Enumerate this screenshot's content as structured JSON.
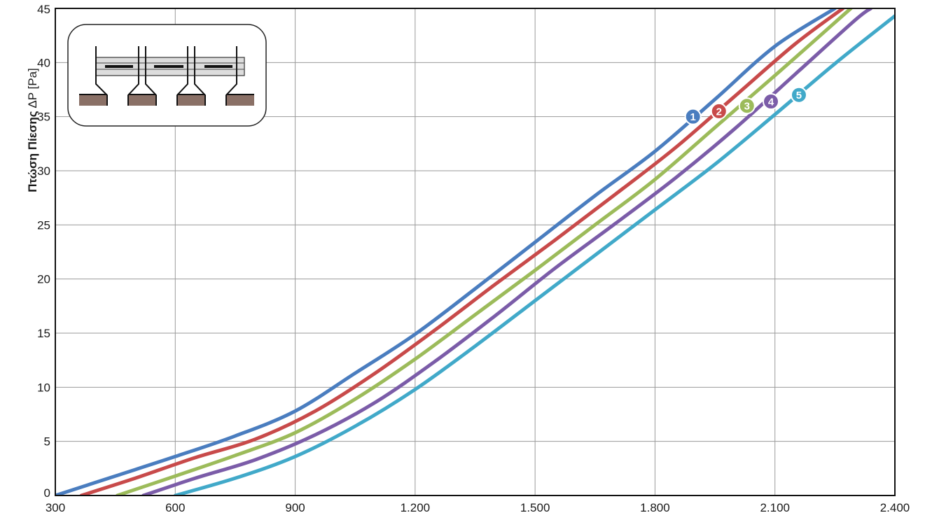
{
  "chart_data": {
    "type": "line",
    "title": "",
    "xlabel": "",
    "ylabel_bold": "Πτώση Πίεσης",
    "ylabel_rest": " ΔP [Pa]",
    "xlim": [
      300,
      2400
    ],
    "ylim": [
      0,
      45
    ],
    "grid": true,
    "x_ticks": [
      300,
      600,
      900,
      1200,
      1500,
      1800,
      2100,
      2400
    ],
    "x_tick_labels": [
      "300",
      "600",
      "900",
      "1.200",
      "1.500",
      "1.800",
      "2.100",
      "2.400"
    ],
    "y_ticks": [
      0,
      5,
      10,
      15,
      20,
      25,
      30,
      35,
      40,
      45
    ],
    "y_tick_labels": [
      "0",
      "5",
      "10",
      "15",
      "20",
      "25",
      "30",
      "35",
      "40",
      "45"
    ],
    "series": [
      {
        "label": "1",
        "color": "#4a7dbf",
        "points": [
          [
            300,
            0
          ],
          [
            450,
            1.8
          ],
          [
            600,
            3.6
          ],
          [
            750,
            5.5
          ],
          [
            900,
            7.8
          ],
          [
            1050,
            11.3
          ],
          [
            1200,
            14.9
          ],
          [
            1350,
            19.1
          ],
          [
            1500,
            23.4
          ],
          [
            1650,
            27.7
          ],
          [
            1800,
            31.8
          ],
          [
            1950,
            36.6
          ],
          [
            2100,
            41.5
          ],
          [
            2250,
            45
          ]
        ],
        "marker": [
          1895,
          35
        ]
      },
      {
        "label": "2",
        "color": "#c84a4a",
        "points": [
          [
            365,
            0
          ],
          [
            500,
            1.6
          ],
          [
            650,
            3.5
          ],
          [
            800,
            5.2
          ],
          [
            950,
            7.8
          ],
          [
            1100,
            11.3
          ],
          [
            1250,
            15.3
          ],
          [
            1400,
            19.5
          ],
          [
            1550,
            23.6
          ],
          [
            1700,
            27.8
          ],
          [
            1850,
            32.1
          ],
          [
            2000,
            36.9
          ],
          [
            2150,
            41.7
          ],
          [
            2270,
            45
          ]
        ],
        "marker": [
          1960,
          35.5
        ]
      },
      {
        "label": "3",
        "color": "#9cbb5a",
        "points": [
          [
            455,
            0
          ],
          [
            600,
            1.8
          ],
          [
            750,
            3.7
          ],
          [
            900,
            5.8
          ],
          [
            1050,
            8.9
          ],
          [
            1200,
            12.6
          ],
          [
            1350,
            16.7
          ],
          [
            1500,
            20.8
          ],
          [
            1650,
            25.0
          ],
          [
            1800,
            29.2
          ],
          [
            1950,
            34.0
          ],
          [
            2100,
            38.8
          ],
          [
            2250,
            43.7
          ],
          [
            2290,
            45
          ]
        ],
        "marker": [
          2030,
          36
        ]
      },
      {
        "label": "4",
        "color": "#7b5ca8",
        "points": [
          [
            520,
            0
          ],
          [
            650,
            1.6
          ],
          [
            800,
            3.3
          ],
          [
            950,
            5.6
          ],
          [
            1100,
            8.6
          ],
          [
            1250,
            12.4
          ],
          [
            1400,
            16.6
          ],
          [
            1550,
            21.0
          ],
          [
            1700,
            25.1
          ],
          [
            1850,
            29.3
          ],
          [
            2000,
            33.9
          ],
          [
            2150,
            38.9
          ],
          [
            2300,
            43.9
          ],
          [
            2340,
            45
          ]
        ],
        "marker": [
          2090,
          36.4
        ]
      },
      {
        "label": "5",
        "color": "#41a9c9",
        "points": [
          [
            600,
            0
          ],
          [
            750,
            1.6
          ],
          [
            900,
            3.6
          ],
          [
            1050,
            6.4
          ],
          [
            1200,
            9.8
          ],
          [
            1350,
            13.8
          ],
          [
            1500,
            18.0
          ],
          [
            1650,
            22.2
          ],
          [
            1800,
            26.4
          ],
          [
            1950,
            30.6
          ],
          [
            2100,
            35.2
          ],
          [
            2250,
            39.9
          ],
          [
            2400,
            44.3
          ]
        ],
        "marker": [
          2160,
          37
        ]
      }
    ]
  },
  "inset_icon": "damper-grille-diagram"
}
